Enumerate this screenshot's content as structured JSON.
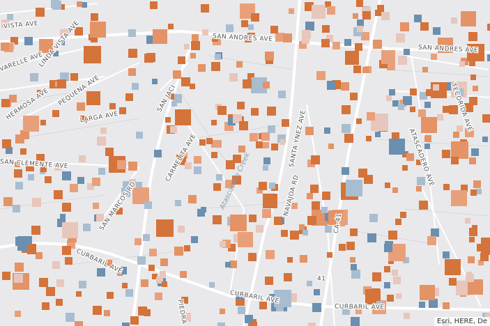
{
  "map": {
    "street_labels": [
      "SAN ANDRES AVE",
      "SAN ANDRES AVE",
      "VISTA AVE",
      "LINDA VISTA AVE",
      "VARELLE AVE",
      "HERMOSA AVE",
      "PEQUENA AVE",
      "LARGA AVE",
      "SAN JACI",
      "SAN CLEMENTE AVE",
      "CARMELITA AVE",
      "Atascadero Creek",
      "SAN MARCOS RD",
      "CURBARIL AVE",
      "CURBARIL AVE",
      "CURBARIL AVE",
      "PIEDRA",
      "SANTA YNEZ AVE",
      "NAVAJOA RD",
      "CA-41",
      "41",
      "ATASCADERO AVE",
      "TECORIDA AVE"
    ],
    "attribution": "Esri, HERE, De"
  }
}
